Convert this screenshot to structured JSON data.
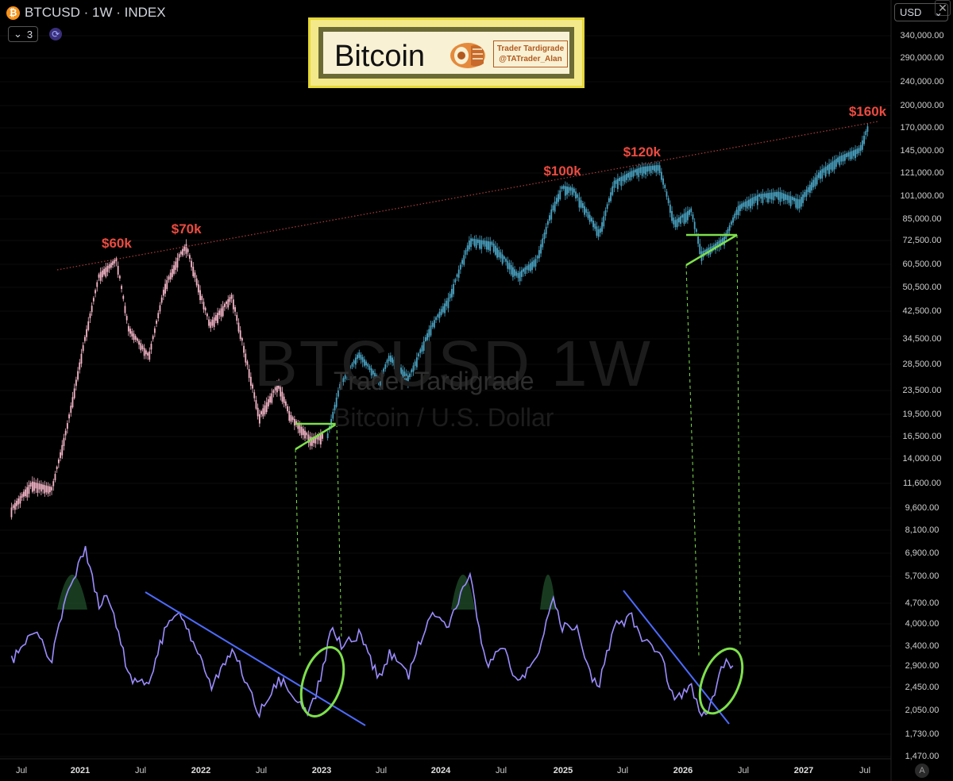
{
  "header": {
    "symbol": "BTCUSD · 1W · INDEX",
    "logo": "₿",
    "indicator_count": "3",
    "indicator_icon": "chevron-down-icon",
    "currency": "USD"
  },
  "badge": {
    "title": "Bitcoin",
    "author_line1": "Trader Tardigrade",
    "author_line2": "@TATrader_Alan"
  },
  "watermark": {
    "symbol": "BTCUSD 1W",
    "author": "Trader Tardigrade",
    "description": "Bitcoin / U.S. Dollar"
  },
  "colors": {
    "candles_history": "#f5b6c9",
    "candles_projection": "#4aa3c3",
    "indicator_line": "#9c8cff",
    "trendline_blue": "#4d6bff",
    "green_marks": "#7ee04b",
    "resistance": "#b23c3c",
    "peak_labels": "#ec4b40"
  },
  "price_axis": [
    "340,000.00",
    "290,000.00",
    "240,000.00",
    "200,000.00",
    "170,000.00",
    "145,000.00",
    "121,000.00",
    "101,000.00",
    "85,000.00",
    "72,500.00",
    "60,500.00",
    "50,500.00",
    "42,500.00",
    "34,500.00",
    "28,500.00",
    "23,500.00",
    "19,500.00",
    "16,500.00",
    "14,000.00",
    "11,600.00",
    "9,600.00",
    "8,100.00",
    "6,900.00",
    "5,700.00",
    "4,700.00",
    "4,000.00",
    "3,400.00",
    "2,900.00",
    "2,450.00",
    "2,050.00",
    "1,730.00",
    "1,470.00"
  ],
  "time_axis": [
    "Jul",
    "2021",
    "Jul",
    "2022",
    "Jul",
    "2023",
    "Jul",
    "2024",
    "Jul",
    "2025",
    "Jul",
    "2026",
    "Jul",
    "2027",
    "Jul"
  ],
  "chart_data": [
    {
      "type": "line",
      "title": "BTCUSD · 1W · INDEX",
      "x_unit": "date",
      "y_scale": "log",
      "ylim": [
        1470,
        340000
      ],
      "series": [
        {
          "name": "",
          "points": [
            [
              "2020-06-01",
              9400
            ],
            [
              "2020-08-01",
              11500
            ],
            [
              "2020-10-01",
              11000
            ],
            [
              "2020-11-15",
              17500
            ],
            [
              "2021-01-05",
              33000
            ],
            [
              "2021-02-20",
              55000
            ],
            [
              "2021-04-14",
              62000
            ],
            [
              "2021-05-20",
              37000
            ],
            [
              "2021-07-20",
              30000
            ],
            [
              "2021-09-05",
              50000
            ],
            [
              "2021-10-20",
              64000
            ],
            [
              "2021-11-10",
              69000
            ],
            [
              "2022-01-20",
              38000
            ],
            [
              "2022-03-28",
              47000
            ],
            [
              "2022-06-18",
              19000
            ],
            [
              "2022-08-15",
              24500
            ],
            [
              "2022-09-20",
              19000
            ],
            [
              "2022-11-21",
              16000
            ],
            [
              "2022-12-28",
              16500
            ]
          ]
        },
        {
          "name": "",
          "points": [
            [
              "2023-01-10",
              16500
            ],
            [
              "2023-02-15",
              24000
            ],
            [
              "2023-04-14",
              30500
            ],
            [
              "2023-06-15",
              25000
            ],
            [
              "2023-07-15",
              30000
            ],
            [
              "2023-09-11",
              25500
            ],
            [
              "2023-11-15",
              37000
            ],
            [
              "2024-01-10",
              46000
            ],
            [
              "2024-03-14",
              72000
            ],
            [
              "2024-05-20",
              70000
            ],
            [
              "2024-08-05",
              55000
            ],
            [
              "2024-10-01",
              62000
            ],
            [
              "2024-11-15",
              90000
            ],
            [
              "2024-12-17",
              107000
            ],
            [
              "2025-01-20",
              105000
            ],
            [
              "2025-04-08",
              76000
            ],
            [
              "2025-05-22",
              111000
            ],
            [
              "2025-07-14",
              120000
            ],
            [
              "2025-08-14",
              124000
            ],
            [
              "2025-10-06",
              126000
            ],
            [
              "2025-11-20",
              82000
            ],
            [
              "2026-01-10",
              90000
            ],
            [
              "2026-02-10",
              65000
            ],
            [
              "2026-03-15",
              68000
            ],
            [
              "2026-04-20",
              73000
            ],
            [
              "2026-06-01",
              92000
            ],
            [
              "2026-08-01",
              100000
            ],
            [
              "2026-10-01",
              102000
            ],
            [
              "2026-12-01",
              96000
            ],
            [
              "2027-02-01",
              120000
            ],
            [
              "2027-04-01",
              135000
            ],
            [
              "2027-06-01",
              145000
            ],
            [
              "2027-06-25",
              168000
            ]
          ]
        }
      ],
      "annotations": [
        {
          "text": "$60k",
          "x": "2021-04-14",
          "y": 62000
        },
        {
          "text": "$70k",
          "x": "2021-11-10",
          "y": 69000
        },
        {
          "text": "$100k",
          "x": "2024-12-17",
          "y": 107000
        },
        {
          "text": "$120k",
          "x": "2025-08-14",
          "y": 124000
        },
        {
          "text": "$160k",
          "x": "2027-06-25",
          "y": 168000
        }
      ]
    },
    {
      "type": "line",
      "title": "",
      "x_unit": "date",
      "series": [
        {
          "name": "",
          "points": [
            [
              "2020-06-01",
              46
            ],
            [
              "2020-08-10",
              60
            ],
            [
              "2020-10-01",
              47
            ],
            [
              "2020-11-20",
              80
            ],
            [
              "2021-01-10",
              96
            ],
            [
              "2021-02-20",
              72
            ],
            [
              "2021-03-15",
              78
            ],
            [
              "2021-05-25",
              38
            ],
            [
              "2021-07-20",
              36
            ],
            [
              "2021-09-05",
              60
            ],
            [
              "2021-10-20",
              68
            ],
            [
              "2021-11-10",
              62
            ],
            [
              "2022-01-25",
              35
            ],
            [
              "2022-03-28",
              52
            ],
            [
              "2022-06-18",
              22
            ],
            [
              "2022-08-15",
              38
            ],
            [
              "2022-11-10",
              24
            ],
            [
              "2022-12-05",
              30
            ],
            [
              "2023-01-25",
              62
            ],
            [
              "2023-02-20",
              54
            ],
            [
              "2023-04-14",
              58
            ],
            [
              "2023-06-15",
              38
            ],
            [
              "2023-07-15",
              50
            ],
            [
              "2023-09-11",
              40
            ],
            [
              "2023-11-15",
              68
            ],
            [
              "2024-01-10",
              62
            ],
            [
              "2024-03-14",
              86
            ],
            [
              "2024-05-01",
              44
            ],
            [
              "2024-06-20",
              52
            ],
            [
              "2024-08-05",
              35
            ],
            [
              "2024-10-01",
              48
            ],
            [
              "2024-11-20",
              74
            ],
            [
              "2024-12-17",
              62
            ],
            [
              "2025-01-30",
              60
            ],
            [
              "2025-03-10",
              40
            ],
            [
              "2025-04-08",
              36
            ],
            [
              "2025-05-22",
              62
            ],
            [
              "2025-07-14",
              66
            ],
            [
              "2025-08-14",
              55
            ],
            [
              "2025-10-06",
              50
            ],
            [
              "2025-11-20",
              28
            ],
            [
              "2026-01-10",
              35
            ],
            [
              "2026-02-10",
              22
            ],
            [
              "2026-03-01",
              24
            ],
            [
              "2026-04-10",
              42
            ],
            [
              "2026-04-25",
              48
            ],
            [
              "2026-05-15",
              44
            ]
          ]
        }
      ]
    }
  ]
}
